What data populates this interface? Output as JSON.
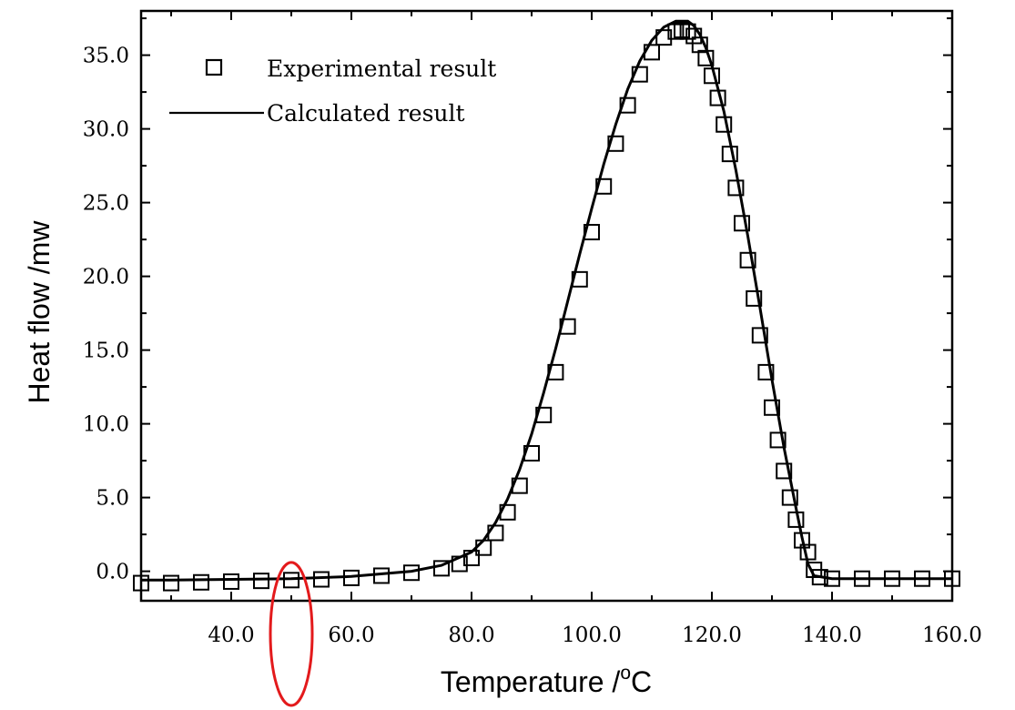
{
  "chart_data": {
    "type": "scatter",
    "xlabel": "Temperature /",
    "xlabel_unit_sup": "o",
    "xlabel_unit": "C",
    "ylabel": "Heat flow /mw",
    "xlim": [
      25,
      160
    ],
    "ylim": [
      -2,
      38
    ],
    "x_ticks": [
      40,
      60,
      80,
      100,
      120,
      140,
      160
    ],
    "x_tick_labels": [
      "40.0",
      "60.0",
      "80.0",
      "100.0",
      "120.0",
      "140.0",
      "160.0"
    ],
    "y_ticks": [
      0,
      5,
      10,
      15,
      20,
      25,
      30,
      35
    ],
    "y_tick_labels": [
      "0.0",
      "5.0",
      "10.0",
      "15.0",
      "20.0",
      "25.0",
      "30.0",
      "35.0"
    ],
    "grid": false,
    "legend_position": "top-left",
    "series": [
      {
        "name": "Experimental result",
        "marker": "open-square",
        "x": [
          25,
          30,
          35,
          40,
          45,
          50,
          55,
          60,
          65,
          70,
          75,
          78,
          80,
          82,
          84,
          86,
          88,
          90,
          92,
          94,
          96,
          98,
          100,
          102,
          104,
          106,
          108,
          110,
          112,
          114,
          115,
          116,
          117,
          118,
          119,
          120,
          121,
          122,
          123,
          124,
          125,
          126,
          127,
          128,
          129,
          130,
          131,
          132,
          133,
          134,
          135,
          136,
          137,
          138,
          140,
          145,
          150,
          155,
          160
        ],
        "y": [
          -0.8,
          -0.8,
          -0.75,
          -0.7,
          -0.65,
          -0.6,
          -0.55,
          -0.45,
          -0.3,
          -0.1,
          0.2,
          0.5,
          0.9,
          1.6,
          2.6,
          4.0,
          5.8,
          8.0,
          10.6,
          13.5,
          16.6,
          19.8,
          23.0,
          26.1,
          29.0,
          31.6,
          33.7,
          35.2,
          36.2,
          36.6,
          36.7,
          36.6,
          36.3,
          35.7,
          34.8,
          33.6,
          32.1,
          30.3,
          28.3,
          26.0,
          23.6,
          21.1,
          18.5,
          16.0,
          13.5,
          11.1,
          8.9,
          6.8,
          5.0,
          3.5,
          2.1,
          1.3,
          0.1,
          -0.4,
          -0.5,
          -0.5,
          -0.5,
          -0.5,
          -0.5
        ]
      },
      {
        "name": "Calculated result",
        "marker": "line",
        "x": [
          25,
          30,
          40,
          50,
          60,
          70,
          75,
          80,
          82,
          84,
          86,
          88,
          90,
          92,
          94,
          96,
          98,
          100,
          102,
          104,
          106,
          108,
          110,
          112,
          114,
          116,
          117,
          118,
          119,
          120,
          122,
          124,
          126,
          128,
          130,
          132,
          134,
          135,
          136,
          137,
          140,
          150,
          160
        ],
        "y": [
          -0.6,
          -0.6,
          -0.55,
          -0.5,
          -0.35,
          0.0,
          0.4,
          1.3,
          2.1,
          3.3,
          4.9,
          6.9,
          9.3,
          12.1,
          15.1,
          18.3,
          21.5,
          24.6,
          27.6,
          30.3,
          32.7,
          34.6,
          36.0,
          36.9,
          37.3,
          37.3,
          37.0,
          36.4,
          35.5,
          34.3,
          31.2,
          27.2,
          22.7,
          17.9,
          13.0,
          8.4,
          4.3,
          2.3,
          0.5,
          -0.3,
          -0.5,
          -0.5,
          -0.5
        ]
      }
    ]
  },
  "annotation": {
    "shape": "ellipse",
    "color": "#e31a1c",
    "x": 50,
    "y_range": [
      -9.1,
      0.6
    ]
  }
}
